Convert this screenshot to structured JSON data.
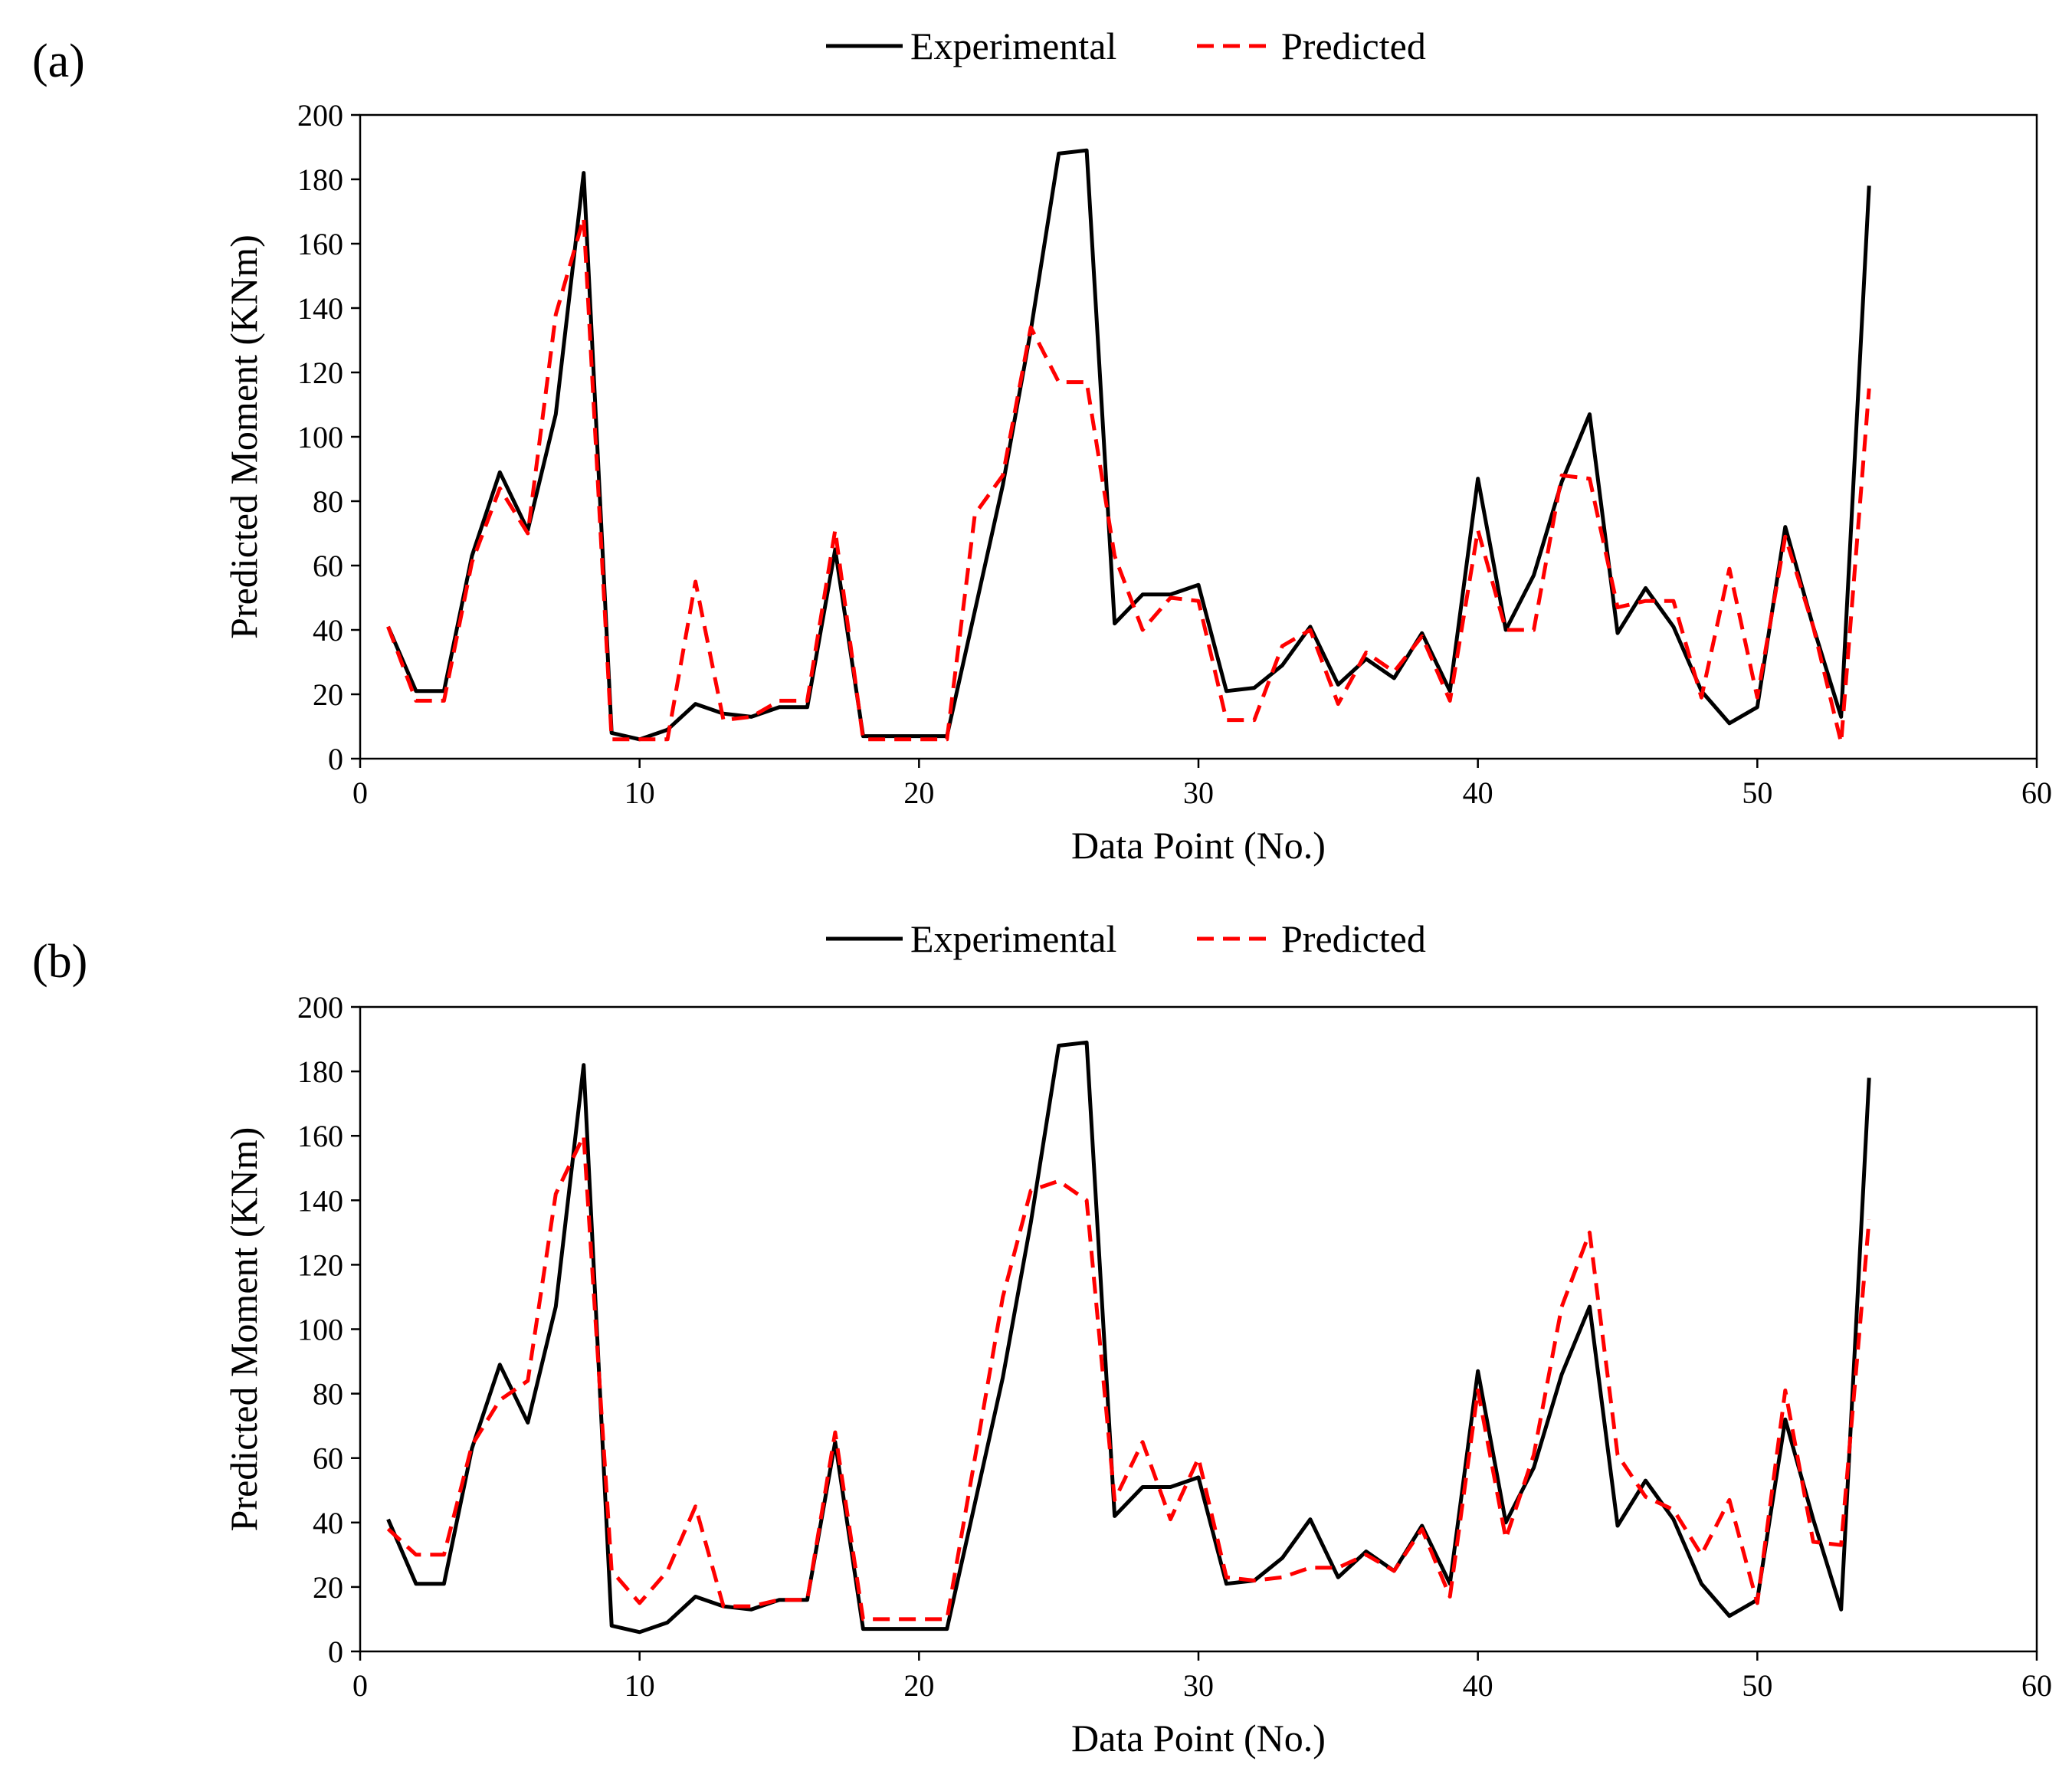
{
  "colors": {
    "experimental": "#000000",
    "predicted": "#ff0000"
  },
  "chart_data": [
    {
      "type": "line",
      "panel_label": "(a)",
      "xlabel": "Data Point (No.)",
      "ylabel": "Predicted Moment (KNm)",
      "xlim": [
        0,
        60
      ],
      "ylim": [
        0,
        200
      ],
      "xticks": [
        0,
        10,
        20,
        30,
        40,
        50,
        60
      ],
      "yticks": [
        0,
        20,
        40,
        60,
        80,
        100,
        120,
        140,
        160,
        180,
        200
      ],
      "grid": false,
      "legend_position": "top-center",
      "x": [
        1,
        2,
        3,
        4,
        5,
        6,
        7,
        8,
        9,
        10,
        11,
        12,
        13,
        14,
        15,
        16,
        17,
        18,
        19,
        20,
        21,
        22,
        23,
        24,
        25,
        26,
        27,
        28,
        29,
        30,
        31,
        32,
        33,
        34,
        35,
        36,
        37,
        38,
        39,
        40,
        41,
        42,
        43,
        44,
        45,
        46,
        47,
        48,
        49,
        50,
        51,
        52,
        53,
        54
      ],
      "series": [
        {
          "name": "Experimental",
          "style": "solid",
          "values": [
            41,
            21,
            21,
            63,
            89,
            71,
            107,
            182,
            8,
            6,
            9,
            17,
            14,
            13,
            16,
            16,
            65,
            7,
            7,
            7,
            7,
            46,
            85,
            133,
            188,
            189,
            42,
            51,
            51,
            54,
            21,
            22,
            29,
            41,
            23,
            31,
            25,
            39,
            21,
            87,
            40,
            57,
            86,
            107,
            39,
            53,
            41,
            21,
            11,
            16,
            72,
            41,
            13,
            178
          ]
        },
        {
          "name": "Predicted",
          "style": "dashed",
          "values": [
            41,
            18,
            18,
            61,
            84,
            70,
            138,
            168,
            6,
            6,
            6,
            55,
            12,
            13,
            18,
            18,
            71,
            6,
            6,
            6,
            6,
            76,
            88,
            134,
            117,
            117,
            63,
            40,
            50,
            49,
            12,
            12,
            35,
            40,
            17,
            33,
            27,
            38,
            18,
            71,
            40,
            40,
            88,
            87,
            47,
            49,
            49,
            19,
            59,
            19,
            69,
            41,
            5,
            115
          ]
        }
      ]
    },
    {
      "type": "line",
      "panel_label": "(b)",
      "xlabel": "Data Point (No.)",
      "ylabel": "Predicted Moment (KNm)",
      "xlim": [
        0,
        60
      ],
      "ylim": [
        0,
        200
      ],
      "xticks": [
        0,
        10,
        20,
        30,
        40,
        50,
        60
      ],
      "yticks": [
        0,
        20,
        40,
        60,
        80,
        100,
        120,
        140,
        160,
        180,
        200
      ],
      "grid": false,
      "legend_position": "top-center",
      "x": [
        1,
        2,
        3,
        4,
        5,
        6,
        7,
        8,
        9,
        10,
        11,
        12,
        13,
        14,
        15,
        16,
        17,
        18,
        19,
        20,
        21,
        22,
        23,
        24,
        25,
        26,
        27,
        28,
        29,
        30,
        31,
        32,
        33,
        34,
        35,
        36,
        37,
        38,
        39,
        40,
        41,
        42,
        43,
        44,
        45,
        46,
        47,
        48,
        49,
        50,
        51,
        52,
        53,
        54
      ],
      "series": [
        {
          "name": "Experimental",
          "style": "solid",
          "values": [
            41,
            21,
            21,
            63,
            89,
            71,
            107,
            182,
            8,
            6,
            9,
            17,
            14,
            13,
            16,
            16,
            65,
            7,
            7,
            7,
            7,
            46,
            85,
            133,
            188,
            189,
            42,
            51,
            51,
            54,
            21,
            22,
            29,
            41,
            23,
            31,
            25,
            39,
            21,
            87,
            40,
            57,
            86,
            107,
            39,
            53,
            41,
            21,
            11,
            16,
            72,
            41,
            13,
            178
          ]
        },
        {
          "name": "Predicted",
          "style": "dashed",
          "values": [
            38,
            30,
            30,
            64,
            78,
            84,
            142,
            160,
            25,
            15,
            25,
            45,
            14,
            14,
            16,
            16,
            68,
            10,
            10,
            10,
            10,
            60,
            110,
            143,
            146,
            140,
            47,
            65,
            41,
            60,
            23,
            22,
            23,
            26,
            26,
            30,
            25,
            38,
            17,
            81,
            35,
            61,
            107,
            130,
            61,
            48,
            44,
            30,
            47,
            15,
            81,
            34,
            33,
            134
          ]
        }
      ]
    }
  ]
}
